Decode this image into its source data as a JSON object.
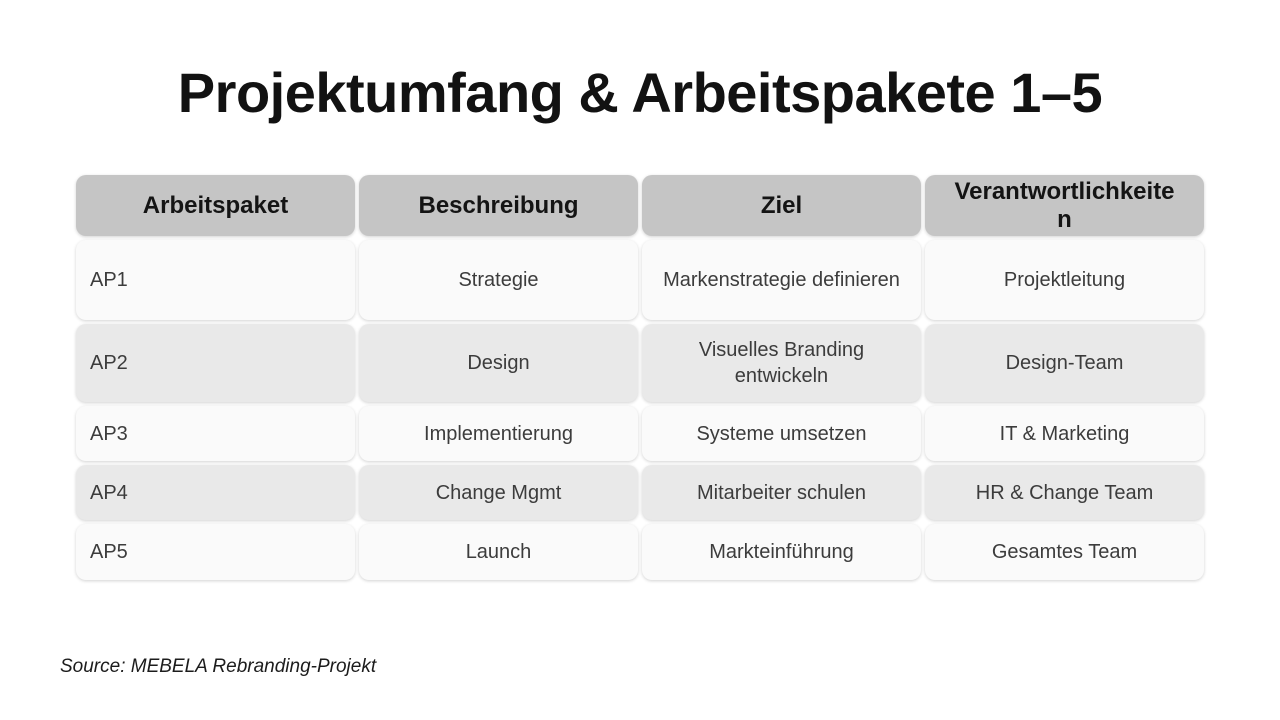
{
  "title": "Projektumfang & Arbeitspakete 1–5",
  "table": {
    "headers": [
      "Arbeitspaket",
      "Beschreibung",
      "Ziel",
      "Verantwortlichkeiten"
    ],
    "rows": [
      {
        "arbeitspaket": "AP1",
        "beschreibung": "Strategie",
        "ziel": "Markenstrategie definieren",
        "verantwortlichkeiten": "Projektleitung"
      },
      {
        "arbeitspaket": "AP2",
        "beschreibung": "Design",
        "ziel": "Visuelles Branding entwickeln",
        "verantwortlichkeiten": "Design-Team"
      },
      {
        "arbeitspaket": "AP3",
        "beschreibung": "Implementierung",
        "ziel": "Systeme umsetzen",
        "verantwortlichkeiten": "IT & Marketing"
      },
      {
        "arbeitspaket": "AP4",
        "beschreibung": "Change Mgmt",
        "ziel": "Mitarbeiter schulen",
        "verantwortlichkeiten": "HR & Change Team"
      },
      {
        "arbeitspaket": "AP5",
        "beschreibung": "Launch",
        "ziel": "Markteinführung",
        "verantwortlichkeiten": "Gesamtes Team"
      }
    ]
  },
  "source": "Source: MEBELA Rebranding-Projekt",
  "colors": {
    "background": "#ffffff",
    "title": "#121212",
    "text": "#3c3c3c",
    "header_bg": "#c5c5c5",
    "row_odd_bg": "#fafafa",
    "row_even_bg": "#e9e9e9"
  }
}
